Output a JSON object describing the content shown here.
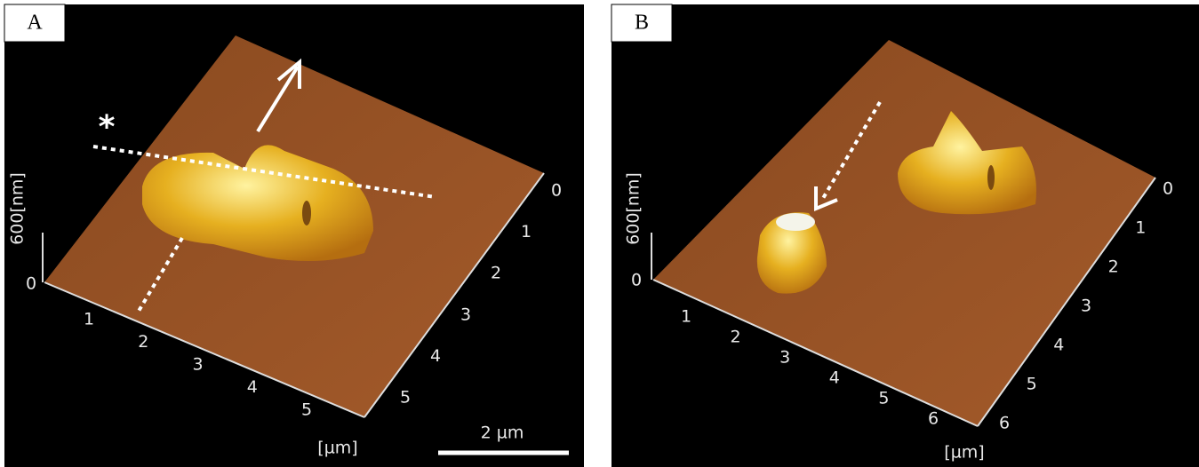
{
  "panels": [
    {
      "label": "A",
      "marker": "*",
      "z_axis": "600[nm]",
      "z_zero": "0",
      "x_ticks": [
        "1",
        "2",
        "3",
        "4",
        "5"
      ],
      "y_ticks": [
        "0",
        "1",
        "2",
        "3",
        "4",
        "5"
      ],
      "unit": "[µm]",
      "scale_bar": "2 µm"
    },
    {
      "label": "B",
      "z_axis": "600[nm]",
      "z_zero": "0",
      "x_ticks": [
        "1",
        "2",
        "3",
        "4",
        "5",
        "6"
      ],
      "y_ticks": [
        "0",
        "1",
        "2",
        "3",
        "4",
        "5",
        "6"
      ],
      "unit": "[µm]"
    }
  ]
}
